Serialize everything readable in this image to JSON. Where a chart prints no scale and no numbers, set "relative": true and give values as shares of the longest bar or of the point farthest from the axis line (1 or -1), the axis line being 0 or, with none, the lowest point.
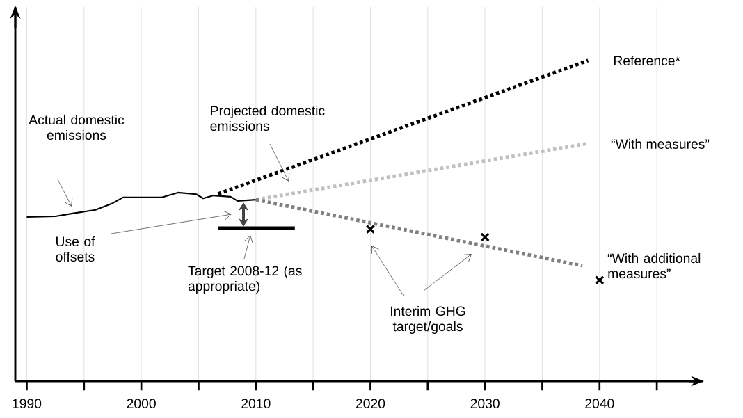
{
  "chart_data": {
    "type": "line",
    "relative": true,
    "xlim": [
      1989,
      2049
    ],
    "xticks": [
      1990,
      {
        "value": 1995,
        "label": null
      },
      2000,
      {
        "value": 2005,
        "label": null
      },
      2010,
      {
        "value": 2015,
        "label": null
      },
      2020,
      {
        "value": 2025,
        "label": null
      },
      2030,
      {
        "value": 2035,
        "label": null
      },
      2040,
      {
        "value": 2045,
        "label": null
      }
    ],
    "grid": "x",
    "marker": "none",
    "series": [
      {
        "color": "#000000",
        "line_style": "solid",
        "x": [
          1990,
          1992.5,
          1994,
          1996,
          1997.5,
          1998.4,
          2001.8,
          2003.2,
          2004.8,
          2005.4,
          2006.3,
          2007.8,
          2008.4,
          2010
        ],
        "values": [
          0.512,
          0.514,
          0.523,
          0.534,
          0.555,
          0.573,
          0.573,
          0.588,
          0.583,
          0.57,
          0.579,
          0.575,
          0.562,
          0.566
        ]
      },
      {
        "name": "Reference*",
        "color": "#000000",
        "line_style": "dotted",
        "x": [
          2006.7,
          2039
        ],
        "values": [
          0.584,
          1
        ]
      },
      {
        "name": "“With measures”",
        "color": "#c0c0c0",
        "line_style": "dotted",
        "x": [
          2010,
          2038.8
        ],
        "values": [
          0.566,
          0.74
        ]
      },
      {
        "name": "“With additional measures”",
        "color": "#808080",
        "line_style": "dotted",
        "x": [
          2010,
          2038.5
        ],
        "values": [
          0.566,
          0.36
        ]
      },
      {
        "color": "#000000",
        "line_style": "solid",
        "x": [
          2006.7,
          2013.4
        ],
        "values": [
          0.477,
          0.477
        ]
      },
      {
        "type": "scatter",
        "marker": "cross",
        "color": "#000000",
        "x": [
          2020,
          2030,
          2040
        ],
        "values": [
          0.474,
          0.449,
          0.315
        ]
      }
    ],
    "annotations": [
      "Actual domestic emissions",
      "Projected domestic emissions",
      "Use of offsets",
      "Target 2008-12 (as appropriate)",
      "Interim GHG target/goals"
    ]
  }
}
